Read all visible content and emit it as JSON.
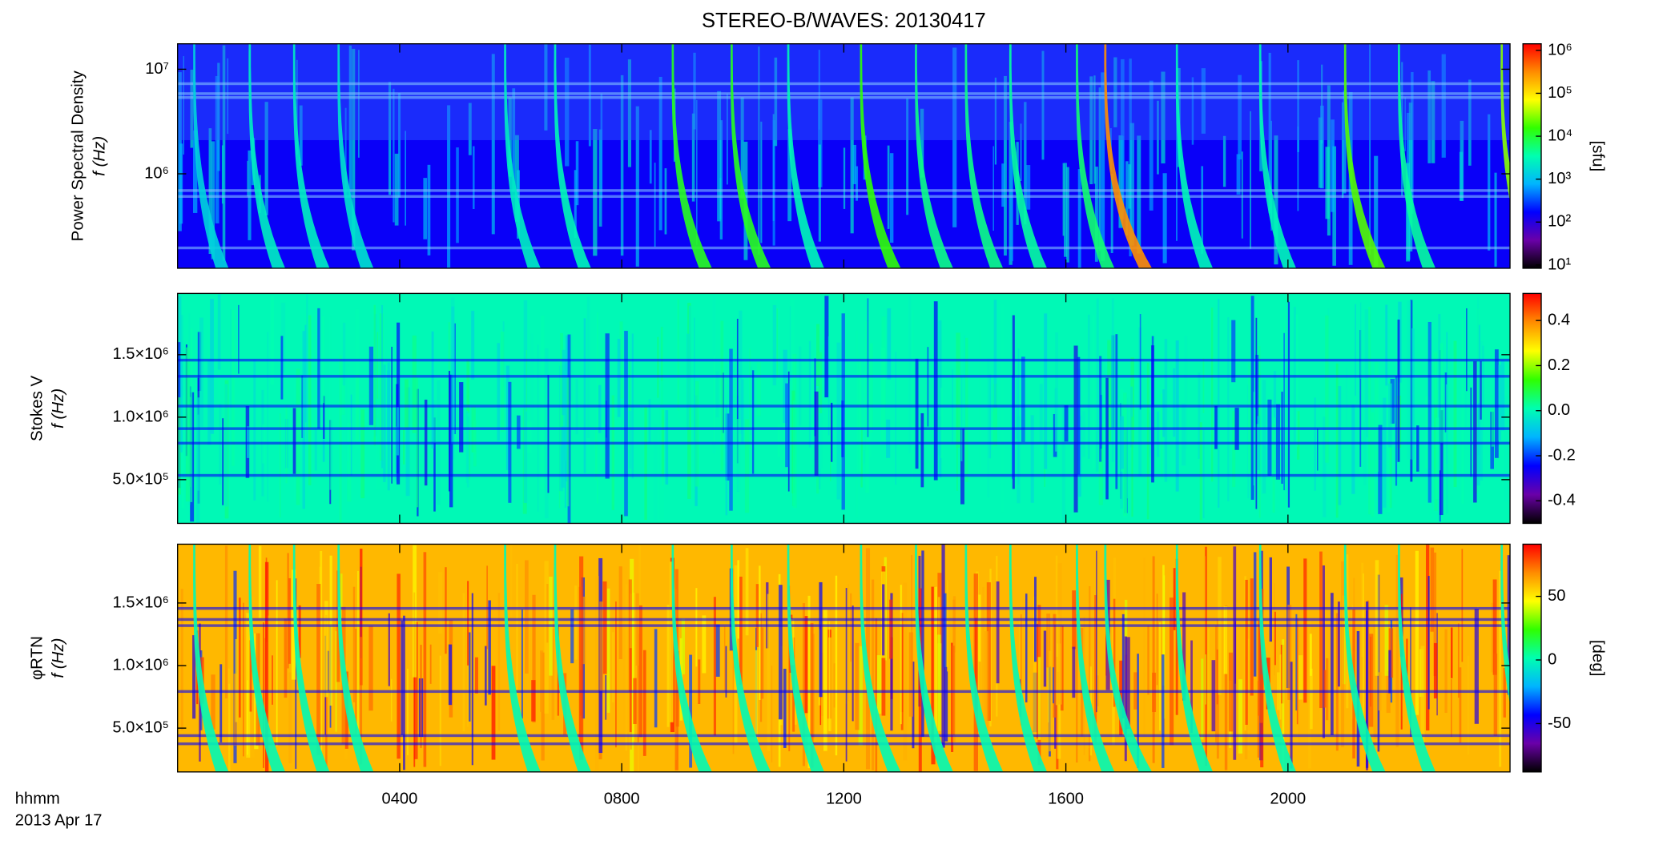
{
  "title": "STEREO-B/WAVES: 20130417",
  "xlabel": "hhmm",
  "date": "2013 Apr 17",
  "colormap": [
    "#000000",
    "#6a00a8",
    "#0000ff",
    "#00b4ff",
    "#00ffb0",
    "#30ff00",
    "#ffff00",
    "#ff8c00",
    "#ff0000"
  ],
  "chart_data": [
    {
      "type": "spectrogram",
      "ylabel": "Power Spectral Density",
      "ylabel2": "f (Hz)",
      "log": true,
      "xlim": [
        0,
        24
      ],
      "ylim": [
        125000,
        17500000
      ],
      "yticks": [
        {
          "value": 1000000,
          "label": "10⁶"
        },
        {
          "value": 10000000,
          "label": "10⁷"
        }
      ],
      "clog": true,
      "clim": [
        8.4,
        1420000
      ],
      "cticks": [
        {
          "value": 10,
          "label": "10¹"
        },
        {
          "value": 100,
          "label": "10²"
        },
        {
          "value": 1000,
          "label": "10³"
        },
        {
          "value": 10000,
          "label": "10⁴"
        },
        {
          "value": 100000,
          "label": "10⁵"
        },
        {
          "value": 1000000,
          "label": "10⁶"
        }
      ],
      "clabel": "[sfu]",
      "background": 150,
      "bursts": [
        {
          "time": 0.3,
          "intensity": 1500
        },
        {
          "time": 1.3,
          "intensity": 2500
        },
        {
          "time": 2.1,
          "intensity": 2500
        },
        {
          "time": 2.9,
          "intensity": 2000
        },
        {
          "time": 5.9,
          "intensity": 2500
        },
        {
          "time": 6.8,
          "intensity": 3000
        },
        {
          "time": 8.92,
          "intensity": 12000
        },
        {
          "time": 9.98,
          "intensity": 12000
        },
        {
          "time": 11.0,
          "intensity": 3000
        },
        {
          "time": 12.31,
          "intensity": 15000
        },
        {
          "time": 13.3,
          "intensity": 5000
        },
        {
          "time": 14.2,
          "intensity": 5000
        },
        {
          "time": 15.0,
          "intensity": 4000
        },
        {
          "time": 16.2,
          "intensity": 6000
        },
        {
          "time": 16.71,
          "intensity": 300000
        },
        {
          "time": 18.0,
          "intensity": 3000
        },
        {
          "time": 19.5,
          "intensity": 3000
        },
        {
          "time": 21.03,
          "intensity": 20000
        },
        {
          "time": 22.0,
          "intensity": 4000
        },
        {
          "time": 23.85,
          "intensity": 30000
        }
      ]
    },
    {
      "type": "spectrogram",
      "ylabel": "Stokes V",
      "ylabel2": "f (Hz)",
      "log": false,
      "xlim": [
        0,
        24
      ],
      "ylim": [
        150000,
        1990000
      ],
      "yticks": [
        {
          "value": 500000,
          "label": "5.0×10⁵"
        },
        {
          "value": 1000000,
          "label": "1.0×10⁶"
        },
        {
          "value": 1500000,
          "label": "1.5×10⁶"
        }
      ],
      "clog": false,
      "clim": [
        -0.5,
        0.52
      ],
      "cticks": [
        -0.4,
        -0.2,
        {
          "value": 0,
          "label": "0.0"
        },
        0.2,
        0.4
      ],
      "background": 0
    },
    {
      "type": "spectrogram",
      "ylabel": "φRTN",
      "ylabel2": "f (Hz)",
      "log": false,
      "xlim": [
        0,
        24
      ],
      "ylim": [
        150000,
        1970000
      ],
      "yticks": [
        {
          "value": 500000,
          "label": "5.0×10⁵"
        },
        {
          "value": 1000000,
          "label": "1.0×10⁶"
        },
        {
          "value": 1500000,
          "label": "1.5×10⁶"
        }
      ],
      "clog": false,
      "clim": [
        -88,
        91
      ],
      "cticks": [
        -50,
        0,
        50
      ],
      "clabel": "[deg]",
      "background": 60,
      "xticks": [
        {
          "value": 4,
          "label": "0400"
        },
        {
          "value": 8,
          "label": "0800"
        },
        {
          "value": 12,
          "label": "1200"
        },
        {
          "value": 16,
          "label": "1600"
        },
        {
          "value": 20,
          "label": "2000"
        }
      ]
    }
  ]
}
